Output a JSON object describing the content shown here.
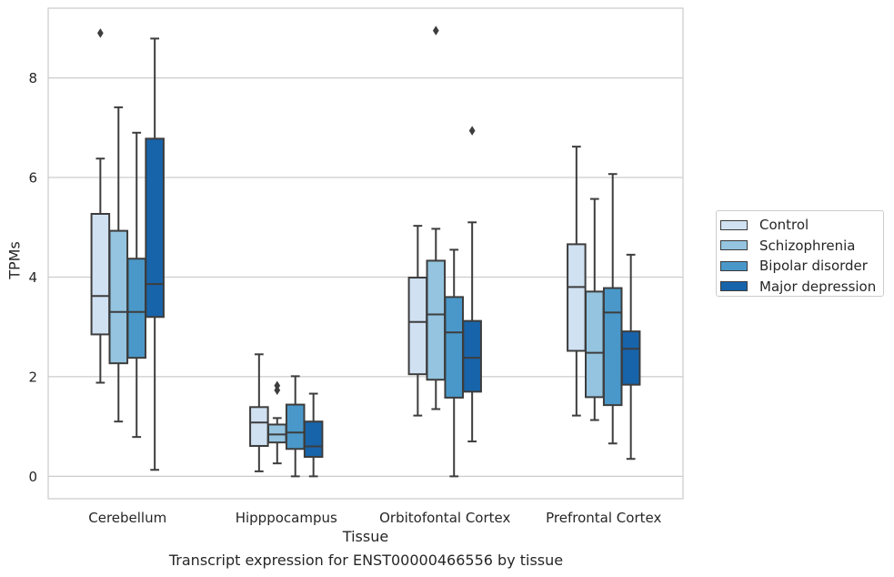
{
  "chart_data": {
    "type": "boxplot",
    "title": "",
    "caption": "Transcript expression for ENST00000466556 by tissue",
    "xlabel": "Tissue",
    "ylabel": "TPMs",
    "ylim": [
      -0.45,
      9.4
    ],
    "yticks": [
      0,
      2,
      4,
      6,
      8
    ],
    "grid": "horizontal",
    "legend_position": "right",
    "categories": [
      "Cerebellum",
      "Hipppocampus",
      "Orbitofontal Cortex",
      "Prefrontal Cortex"
    ],
    "series": [
      {
        "name": "Control",
        "color": "#d0e1f2",
        "boxes": [
          {
            "whislo": 1.88,
            "q1": 2.85,
            "med": 3.62,
            "q3": 5.27,
            "whishi": 6.38,
            "fliers": [
              8.9
            ]
          },
          {
            "whislo": 0.1,
            "q1": 0.61,
            "med": 1.08,
            "q3": 1.39,
            "whishi": 2.45,
            "fliers": []
          },
          {
            "whislo": 1.22,
            "q1": 2.05,
            "med": 3.1,
            "q3": 3.99,
            "whishi": 5.03,
            "fliers": []
          },
          {
            "whislo": 1.22,
            "q1": 2.52,
            "med": 3.8,
            "q3": 4.66,
            "whishi": 6.62,
            "fliers": []
          }
        ]
      },
      {
        "name": "Schizophrenia",
        "color": "#94c4df",
        "boxes": [
          {
            "whislo": 1.1,
            "q1": 2.27,
            "med": 3.3,
            "q3": 4.93,
            "whishi": 7.41,
            "fliers": []
          },
          {
            "whislo": 0.26,
            "q1": 0.68,
            "med": 0.84,
            "q3": 1.04,
            "whishi": 1.17,
            "fliers": [
              1.73,
              1.82
            ]
          },
          {
            "whislo": 1.35,
            "q1": 1.94,
            "med": 3.25,
            "q3": 4.33,
            "whishi": 4.97,
            "fliers": [
              8.95
            ]
          },
          {
            "whislo": 1.13,
            "q1": 1.59,
            "med": 2.48,
            "q3": 3.71,
            "whishi": 5.57,
            "fliers": []
          }
        ]
      },
      {
        "name": "Bipolar disorder",
        "color": "#4a98c9",
        "boxes": [
          {
            "whislo": 0.79,
            "q1": 2.38,
            "med": 3.3,
            "q3": 4.37,
            "whishi": 6.9,
            "fliers": []
          },
          {
            "whislo": 0.0,
            "q1": 0.55,
            "med": 0.88,
            "q3": 1.44,
            "whishi": 2.01,
            "fliers": []
          },
          {
            "whislo": 0.0,
            "q1": 1.58,
            "med": 2.89,
            "q3": 3.6,
            "whishi": 4.55,
            "fliers": []
          },
          {
            "whislo": 0.66,
            "q1": 1.43,
            "med": 3.29,
            "q3": 3.78,
            "whishi": 6.07,
            "fliers": []
          }
        ]
      },
      {
        "name": "Major depression",
        "color": "#1764ab",
        "boxes": [
          {
            "whislo": 0.13,
            "q1": 3.2,
            "med": 3.86,
            "q3": 6.78,
            "whishi": 8.79,
            "fliers": []
          },
          {
            "whislo": 0.0,
            "q1": 0.39,
            "med": 0.6,
            "q3": 1.1,
            "whishi": 1.66,
            "fliers": []
          },
          {
            "whislo": 0.7,
            "q1": 1.7,
            "med": 2.38,
            "q3": 3.12,
            "whishi": 5.1,
            "fliers": [
              6.94
            ]
          },
          {
            "whislo": 0.35,
            "q1": 1.84,
            "med": 2.56,
            "q3": 2.91,
            "whishi": 4.45,
            "fliers": []
          }
        ]
      }
    ]
  }
}
